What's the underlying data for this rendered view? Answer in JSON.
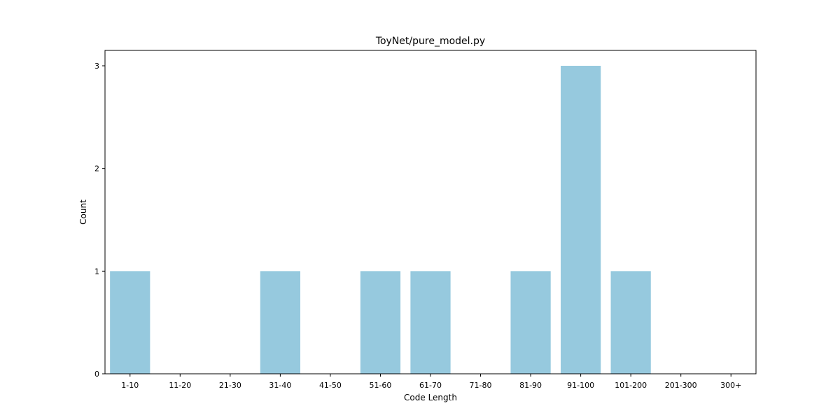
{
  "chart_data": {
    "type": "bar",
    "title": "ToyNet/pure_model.py",
    "xlabel": "Code Length",
    "ylabel": "Count",
    "categories": [
      "1-10",
      "11-20",
      "21-30",
      "31-40",
      "41-50",
      "51-60",
      "61-70",
      "71-80",
      "81-90",
      "91-100",
      "101-200",
      "201-300",
      "300+"
    ],
    "values": [
      1,
      0,
      0,
      1,
      0,
      1,
      1,
      0,
      1,
      3,
      1,
      0,
      0
    ],
    "ylim": [
      0,
      3.15
    ],
    "yticks": [
      0,
      1,
      2,
      3
    ],
    "bar_color": "#96c9de",
    "grid": false,
    "legend": "none"
  }
}
